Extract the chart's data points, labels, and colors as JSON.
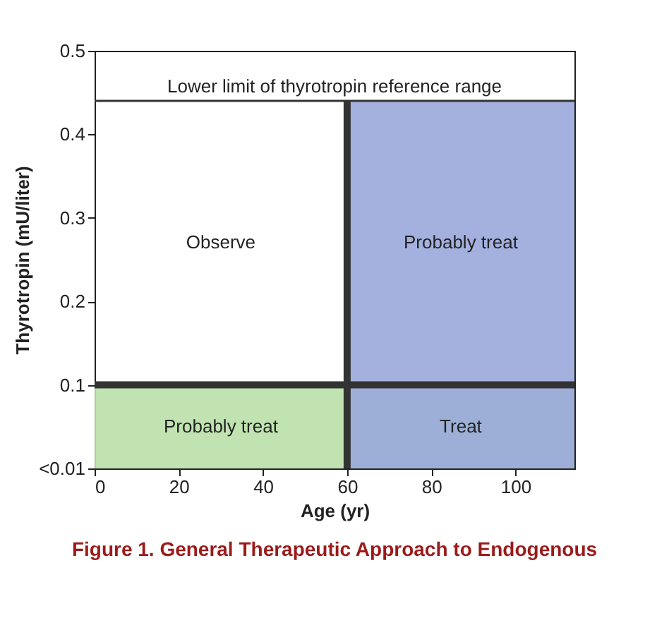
{
  "chart_data": {
    "type": "area",
    "xlabel": "Age (yr)",
    "ylabel": "Thyrotropin (mU/liter)",
    "xlim": [
      0,
      114
    ],
    "xticks": [
      0,
      20,
      40,
      60,
      80,
      100
    ],
    "ylim": [
      0,
      0.5
    ],
    "yticks": [
      {
        "value": 0,
        "label": "<0.01"
      },
      0.1,
      0.2,
      0.3,
      0.4,
      0.5
    ],
    "bands": [
      {
        "axis": "y",
        "from": 0,
        "to": 0.1,
        "color": "#b9e0a8"
      },
      {
        "axis": "x",
        "from": 60,
        "to": 114,
        "color": "#9aa8dc"
      }
    ],
    "ref_lines": [
      {
        "axis": "y",
        "value": 0.44,
        "label": "Lower limit of thyrotropin reference range",
        "color": "#333333"
      },
      {
        "axis": "y",
        "value": 0.1,
        "color": "#333333"
      },
      {
        "axis": "x",
        "value": 60,
        "color": "#333333"
      }
    ],
    "annotations": [
      "Observe",
      "Probably treat",
      "Probably treat",
      "Treat",
      "Figure 1. General Therapeutic Approach to Endogenous"
    ]
  }
}
